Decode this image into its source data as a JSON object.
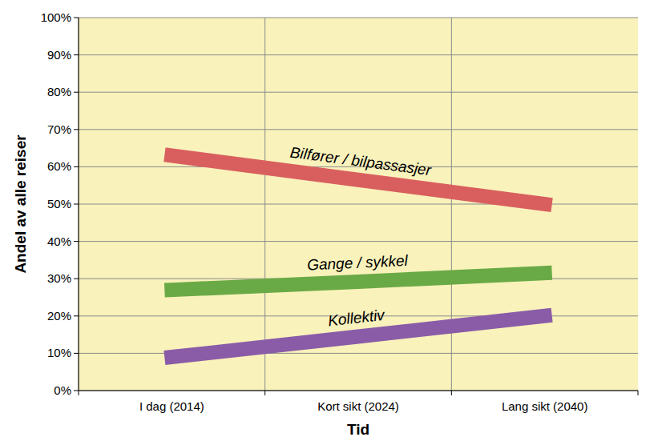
{
  "chart_data": {
    "type": "line",
    "x_label": "Tid",
    "y_label": "Andel av alle reiser",
    "categories": [
      "I dag (2014)",
      "Kort sikt (2024)",
      "Lang sikt (2040)"
    ],
    "series": [
      {
        "name": "Bilfører / bilpassasjer",
        "color": "#d95f5f",
        "values": [
          63,
          56.5,
          50
        ]
      },
      {
        "name": "Gange / sykkel",
        "color": "#6aaa46",
        "values": [
          27,
          29.2,
          31.5
        ]
      },
      {
        "name": "Kollektiv",
        "color": "#8a5ca8",
        "values": [
          9,
          14.5,
          20
        ]
      }
    ],
    "ylim": [
      0,
      100
    ],
    "yticks": [
      {
        "value": 0,
        "label": "0%"
      },
      {
        "value": 10,
        "label": "10%"
      },
      {
        "value": 20,
        "label": "20%"
      },
      {
        "value": 30,
        "label": "30%"
      },
      {
        "value": 40,
        "label": "40%"
      },
      {
        "value": 50,
        "label": "50%"
      },
      {
        "value": 60,
        "label": "60%"
      },
      {
        "value": 70,
        "label": "70%"
      },
      {
        "value": 80,
        "label": "80%"
      },
      {
        "value": 90,
        "label": "90%"
      },
      {
        "value": 100,
        "label": "100%"
      }
    ],
    "grid": true,
    "line_style": "solid"
  }
}
